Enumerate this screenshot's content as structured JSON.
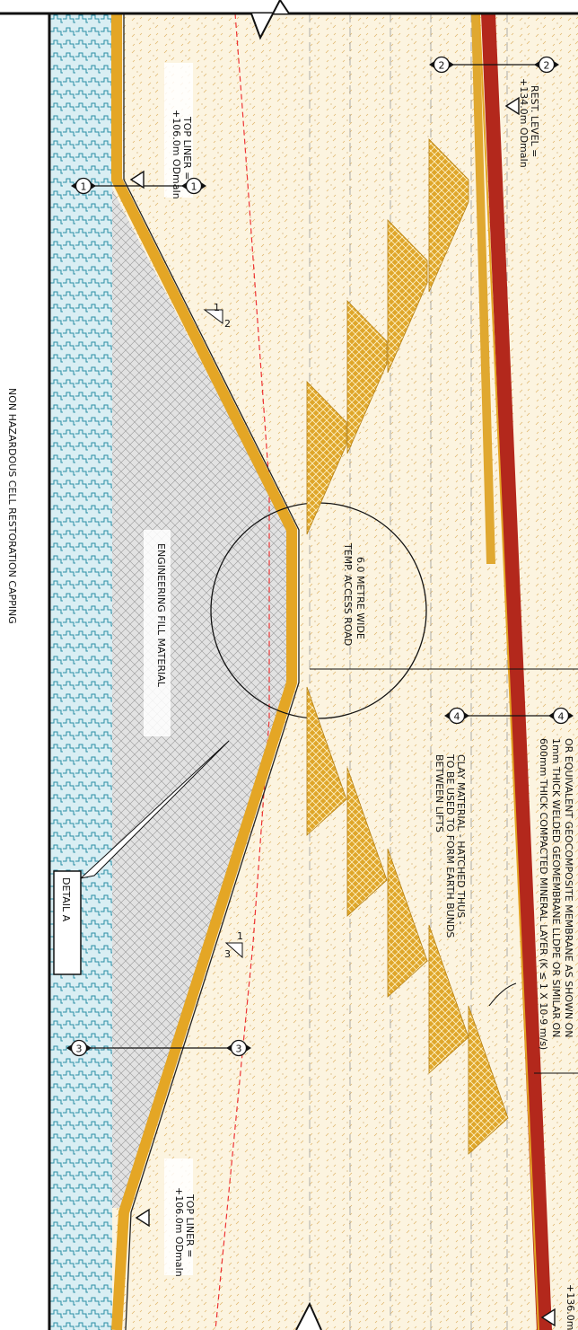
{
  "title": "NON HAZARDOUS CELL RESTORATION CAPPING",
  "fill_label": "ENGINEERING FILL MATERIAL",
  "road_label": [
    "6.0 METRE WIDE",
    "TEMP. ACCESS ROAD"
  ],
  "detail": "DETAIL A",
  "top_liner_upper": [
    "TOP LINER =",
    "+106.0m ODmaIn"
  ],
  "top_liner_lower": [
    "TOP LINER =",
    "+106.0m ODmaIn"
  ],
  "rest_level": [
    "REST. LEVEL =",
    "+134.0m ODmaIn"
  ],
  "clay_note": [
    "CLAY MATERIAL - HATCHED THUS -",
    "TO BE USED TO FORM EARTH BUNDS",
    "BETWEEN LIFTS"
  ],
  "liner_note": [
    "OR EQUIVALENT GEOCOMPOSITE MEMBRANE AS SHOWN ON",
    "1mm THICK WELDED GEOMEMBRANE LLDPE OR SIMILAR ON",
    "600mm THICK COMPACTED MINERAL LAYER (K ≤ 1 X 10-9 m/s)"
  ],
  "markers": [
    "1",
    "1",
    "2",
    "2",
    "3",
    "3",
    "4",
    "4"
  ],
  "slopes": [
    [
      "1",
      "2"
    ],
    [
      "1",
      "3"
    ]
  ],
  "edge_level": "+136.0m O"
}
